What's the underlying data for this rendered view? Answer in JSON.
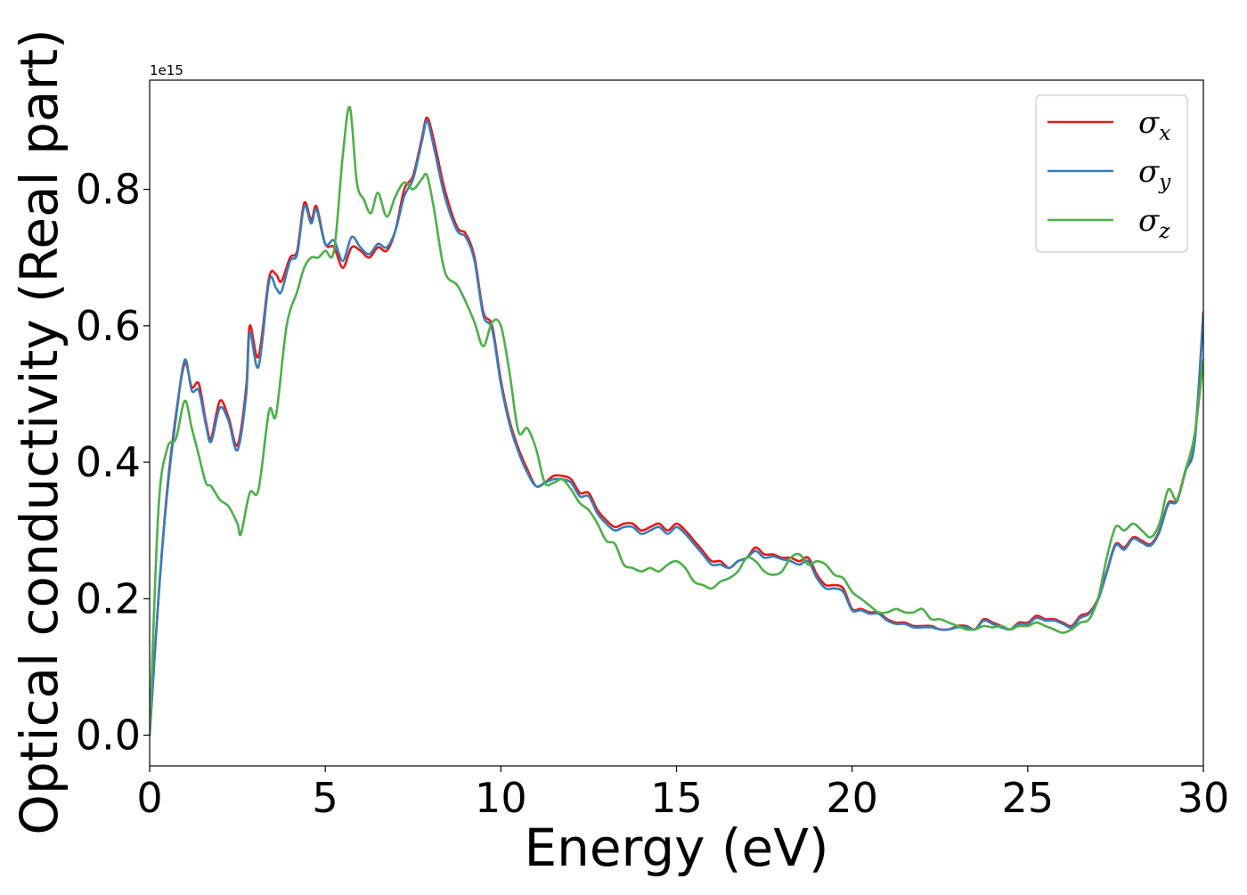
{
  "chart_data": {
    "type": "line",
    "xlabel": "Energy (eV)",
    "ylabel": "Optical conductivity (Real part)",
    "y_offset_label": "1e15",
    "y_scale_multiplier": 1000000000000000.0,
    "xlim": [
      0,
      30
    ],
    "ylim": [
      -0.045,
      0.96
    ],
    "x_ticks": [
      0,
      5,
      10,
      15,
      20,
      25,
      30
    ],
    "x_tick_labels": [
      "0",
      "5",
      "10",
      "15",
      "20",
      "25",
      "30"
    ],
    "y_ticks": [
      0.0,
      0.2,
      0.4,
      0.6,
      0.8
    ],
    "y_tick_labels": [
      "0.0",
      "0.2",
      "0.4",
      "0.6",
      "0.8"
    ],
    "grid": false,
    "legend_position": "top-right",
    "series": [
      {
        "name": "σx",
        "legend_symbol": "σ",
        "legend_subscript": "x",
        "color": "#e41a1c",
        "x": [
          0,
          0.25,
          0.5,
          0.75,
          1.0,
          1.2,
          1.4,
          1.6,
          1.75,
          2.0,
          2.25,
          2.5,
          2.75,
          2.85,
          3.1,
          3.4,
          3.6,
          3.75,
          4.0,
          4.2,
          4.4,
          4.6,
          4.75,
          5.0,
          5.25,
          5.5,
          5.75,
          6.0,
          6.25,
          6.5,
          6.75,
          7.0,
          7.25,
          7.5,
          7.75,
          7.9,
          8.1,
          8.4,
          8.75,
          9.0,
          9.25,
          9.5,
          9.75,
          10.0,
          10.25,
          10.5,
          10.75,
          11.0,
          11.25,
          11.5,
          11.75,
          12.0,
          12.25,
          12.5,
          12.75,
          13.0,
          13.25,
          13.5,
          13.75,
          14.0,
          14.25,
          14.5,
          14.75,
          15.0,
          15.25,
          15.5,
          15.75,
          16.0,
          16.25,
          16.5,
          16.75,
          17.0,
          17.25,
          17.5,
          17.75,
          18.0,
          18.25,
          18.5,
          18.75,
          19.0,
          19.25,
          19.5,
          19.75,
          20.0,
          20.25,
          20.5,
          20.75,
          21.0,
          21.25,
          21.5,
          21.75,
          22.0,
          22.25,
          22.5,
          22.75,
          23.0,
          23.25,
          23.5,
          23.75,
          24.0,
          24.25,
          24.5,
          24.75,
          25.0,
          25.25,
          25.5,
          25.75,
          26.0,
          26.25,
          26.5,
          26.75,
          27.0,
          27.25,
          27.5,
          27.75,
          28.0,
          28.25,
          28.5,
          28.75,
          29.0,
          29.25,
          29.5,
          29.75,
          30.0
        ],
        "y": [
          0.0,
          0.2,
          0.36,
          0.47,
          0.545,
          0.51,
          0.515,
          0.46,
          0.435,
          0.49,
          0.465,
          0.425,
          0.51,
          0.6,
          0.555,
          0.67,
          0.675,
          0.665,
          0.7,
          0.71,
          0.78,
          0.755,
          0.775,
          0.72,
          0.715,
          0.685,
          0.715,
          0.71,
          0.7,
          0.715,
          0.71,
          0.74,
          0.8,
          0.82,
          0.875,
          0.905,
          0.87,
          0.8,
          0.745,
          0.735,
          0.7,
          0.62,
          0.6,
          0.52,
          0.46,
          0.42,
          0.39,
          0.365,
          0.37,
          0.38,
          0.38,
          0.375,
          0.355,
          0.355,
          0.33,
          0.315,
          0.305,
          0.31,
          0.31,
          0.3,
          0.305,
          0.31,
          0.3,
          0.31,
          0.3,
          0.285,
          0.27,
          0.255,
          0.255,
          0.245,
          0.255,
          0.26,
          0.275,
          0.265,
          0.265,
          0.26,
          0.26,
          0.255,
          0.26,
          0.235,
          0.22,
          0.22,
          0.215,
          0.185,
          0.185,
          0.18,
          0.18,
          0.17,
          0.165,
          0.165,
          0.16,
          0.16,
          0.16,
          0.155,
          0.155,
          0.16,
          0.16,
          0.155,
          0.17,
          0.165,
          0.16,
          0.155,
          0.165,
          0.165,
          0.175,
          0.17,
          0.17,
          0.165,
          0.16,
          0.175,
          0.18,
          0.2,
          0.24,
          0.28,
          0.275,
          0.29,
          0.285,
          0.28,
          0.3,
          0.34,
          0.345,
          0.39,
          0.43,
          0.62
        ]
      },
      {
        "name": "σy",
        "legend_symbol": "σ",
        "legend_subscript": "y",
        "color": "#377eb8",
        "x": [
          0,
          0.25,
          0.5,
          0.75,
          1.0,
          1.2,
          1.4,
          1.6,
          1.75,
          2.0,
          2.25,
          2.5,
          2.75,
          2.85,
          3.1,
          3.4,
          3.6,
          3.75,
          4.0,
          4.2,
          4.4,
          4.6,
          4.75,
          5.0,
          5.25,
          5.5,
          5.75,
          6.0,
          6.25,
          6.5,
          6.75,
          7.0,
          7.25,
          7.5,
          7.75,
          7.9,
          8.1,
          8.4,
          8.75,
          9.0,
          9.25,
          9.5,
          9.75,
          10.0,
          10.25,
          10.5,
          10.75,
          11.0,
          11.25,
          11.5,
          11.75,
          12.0,
          12.25,
          12.5,
          12.75,
          13.0,
          13.25,
          13.5,
          13.75,
          14.0,
          14.25,
          14.5,
          14.75,
          15.0,
          15.25,
          15.5,
          15.75,
          16.0,
          16.25,
          16.5,
          16.75,
          17.0,
          17.25,
          17.5,
          17.75,
          18.0,
          18.25,
          18.5,
          18.75,
          19.0,
          19.25,
          19.5,
          19.75,
          20.0,
          20.25,
          20.5,
          20.75,
          21.0,
          21.25,
          21.5,
          21.75,
          22.0,
          22.25,
          22.5,
          22.75,
          23.0,
          23.25,
          23.5,
          23.75,
          24.0,
          24.25,
          24.5,
          24.75,
          25.0,
          25.25,
          25.5,
          25.75,
          26.0,
          26.25,
          26.5,
          26.75,
          27.0,
          27.25,
          27.5,
          27.75,
          28.0,
          28.25,
          28.5,
          28.75,
          29.0,
          29.25,
          29.5,
          29.75,
          30.0
        ],
        "y": [
          0.0,
          0.2,
          0.355,
          0.465,
          0.55,
          0.505,
          0.505,
          0.455,
          0.43,
          0.48,
          0.46,
          0.418,
          0.5,
          0.59,
          0.54,
          0.665,
          0.655,
          0.65,
          0.695,
          0.705,
          0.775,
          0.75,
          0.77,
          0.72,
          0.725,
          0.695,
          0.73,
          0.715,
          0.705,
          0.72,
          0.715,
          0.74,
          0.79,
          0.815,
          0.87,
          0.9,
          0.86,
          0.79,
          0.74,
          0.73,
          0.695,
          0.615,
          0.595,
          0.515,
          0.455,
          0.415,
          0.385,
          0.365,
          0.37,
          0.375,
          0.375,
          0.37,
          0.35,
          0.35,
          0.325,
          0.31,
          0.3,
          0.305,
          0.305,
          0.295,
          0.3,
          0.305,
          0.295,
          0.305,
          0.295,
          0.28,
          0.265,
          0.25,
          0.25,
          0.245,
          0.255,
          0.26,
          0.27,
          0.26,
          0.262,
          0.258,
          0.255,
          0.25,
          0.255,
          0.23,
          0.215,
          0.215,
          0.21,
          0.183,
          0.183,
          0.178,
          0.178,
          0.168,
          0.163,
          0.163,
          0.158,
          0.158,
          0.158,
          0.155,
          0.155,
          0.158,
          0.158,
          0.155,
          0.168,
          0.163,
          0.158,
          0.155,
          0.163,
          0.163,
          0.172,
          0.168,
          0.168,
          0.163,
          0.158,
          0.172,
          0.178,
          0.198,
          0.238,
          0.278,
          0.272,
          0.288,
          0.282,
          0.278,
          0.298,
          0.338,
          0.343,
          0.388,
          0.428,
          0.615
        ]
      },
      {
        "name": "σz",
        "legend_symbol": "σ",
        "legend_subscript": "z",
        "color": "#4daf4a",
        "x": [
          0,
          0.25,
          0.5,
          0.75,
          1.0,
          1.2,
          1.4,
          1.6,
          1.75,
          2.0,
          2.25,
          2.5,
          2.6,
          2.85,
          3.1,
          3.4,
          3.6,
          3.9,
          4.2,
          4.4,
          4.6,
          4.8,
          5.0,
          5.25,
          5.5,
          5.7,
          5.9,
          6.1,
          6.3,
          6.5,
          6.75,
          7.0,
          7.25,
          7.5,
          7.75,
          7.9,
          8.1,
          8.4,
          8.75,
          9.0,
          9.25,
          9.5,
          9.75,
          10.0,
          10.25,
          10.5,
          10.75,
          11.0,
          11.25,
          11.5,
          11.75,
          12.0,
          12.25,
          12.5,
          12.75,
          13.0,
          13.25,
          13.5,
          13.75,
          14.0,
          14.25,
          14.5,
          14.75,
          15.0,
          15.25,
          15.5,
          15.75,
          16.0,
          16.25,
          16.5,
          16.75,
          17.0,
          17.25,
          17.5,
          17.75,
          18.0,
          18.25,
          18.5,
          18.75,
          19.0,
          19.25,
          19.5,
          19.75,
          20.0,
          20.25,
          20.5,
          20.75,
          21.0,
          21.25,
          21.5,
          21.75,
          22.0,
          22.25,
          22.5,
          22.75,
          23.0,
          23.25,
          23.5,
          23.75,
          24.0,
          24.25,
          24.5,
          24.75,
          25.0,
          25.25,
          25.5,
          25.75,
          26.0,
          26.25,
          26.5,
          26.75,
          27.0,
          27.25,
          27.5,
          27.75,
          28.0,
          28.25,
          28.5,
          28.75,
          29.0,
          29.25,
          29.5,
          29.75,
          30.0
        ],
        "y": [
          0.0,
          0.33,
          0.42,
          0.435,
          0.49,
          0.45,
          0.41,
          0.37,
          0.365,
          0.345,
          0.335,
          0.31,
          0.295,
          0.355,
          0.36,
          0.475,
          0.47,
          0.6,
          0.65,
          0.685,
          0.7,
          0.7,
          0.71,
          0.71,
          0.85,
          0.92,
          0.81,
          0.785,
          0.765,
          0.795,
          0.76,
          0.79,
          0.81,
          0.8,
          0.815,
          0.82,
          0.77,
          0.68,
          0.66,
          0.635,
          0.605,
          0.57,
          0.605,
          0.6,
          0.53,
          0.445,
          0.45,
          0.42,
          0.37,
          0.37,
          0.375,
          0.36,
          0.34,
          0.33,
          0.31,
          0.285,
          0.28,
          0.25,
          0.245,
          0.24,
          0.245,
          0.24,
          0.25,
          0.255,
          0.245,
          0.225,
          0.22,
          0.215,
          0.225,
          0.23,
          0.24,
          0.26,
          0.255,
          0.24,
          0.235,
          0.24,
          0.26,
          0.265,
          0.25,
          0.255,
          0.25,
          0.235,
          0.23,
          0.21,
          0.2,
          0.19,
          0.18,
          0.18,
          0.185,
          0.18,
          0.18,
          0.185,
          0.17,
          0.17,
          0.165,
          0.16,
          0.155,
          0.155,
          0.16,
          0.158,
          0.16,
          0.155,
          0.16,
          0.16,
          0.165,
          0.16,
          0.155,
          0.15,
          0.155,
          0.165,
          0.17,
          0.2,
          0.26,
          0.305,
          0.3,
          0.31,
          0.3,
          0.29,
          0.31,
          0.36,
          0.345,
          0.39,
          0.44,
          0.55
        ]
      }
    ]
  }
}
